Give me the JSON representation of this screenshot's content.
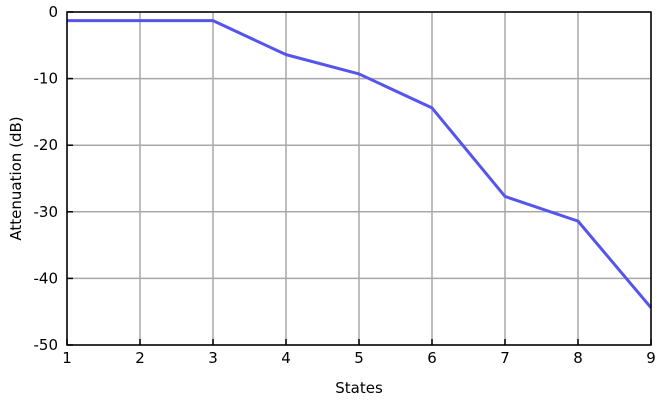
{
  "chart_data": {
    "type": "line",
    "title": "",
    "xlabel": "States",
    "ylabel": "Attenuation (dB)",
    "xlim": [
      1,
      9
    ],
    "ylim": [
      -50,
      0
    ],
    "xticks": [
      1,
      2,
      3,
      4,
      5,
      6,
      7,
      8,
      9
    ],
    "yticks": [
      0,
      -10,
      -20,
      -30,
      -40,
      -50
    ],
    "xtick_labels": [
      "1",
      "2",
      "3",
      "4",
      "5",
      "6",
      "7",
      "8",
      "9"
    ],
    "ytick_labels": [
      "0",
      "-10",
      "-20",
      "-30",
      "-40",
      "-50"
    ],
    "grid": true,
    "legend": "none",
    "series": [
      {
        "color": "#5555ee",
        "x": [
          1,
          2,
          3,
          4,
          5,
          6,
          7,
          8,
          9
        ],
        "y": [
          -1.3,
          -1.3,
          -1.3,
          -6.4,
          -9.3,
          -14.4,
          -27.7,
          -31.4,
          -44.4
        ]
      }
    ]
  }
}
